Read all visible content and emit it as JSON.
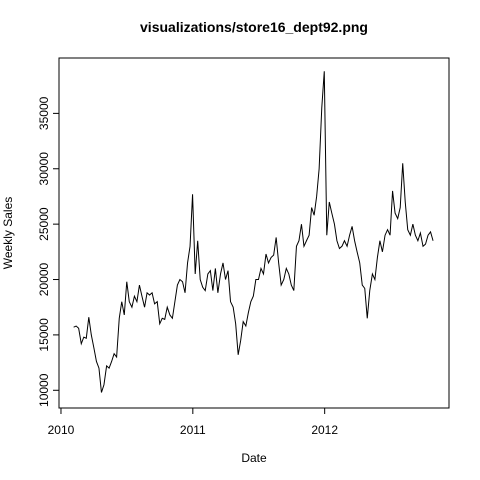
{
  "chart_data": {
    "type": "line",
    "title": "visualizations/store16_dept92.png",
    "xlabel": "Date",
    "ylabel": "Weekly Sales",
    "x": [
      2010.096,
      2010.115,
      2010.134,
      2010.154,
      2010.173,
      2010.192,
      2010.211,
      2010.23,
      2010.25,
      2010.269,
      2010.288,
      2010.307,
      2010.326,
      2010.346,
      2010.365,
      2010.384,
      2010.403,
      2010.422,
      2010.442,
      2010.461,
      2010.48,
      2010.499,
      2010.518,
      2010.538,
      2010.557,
      2010.576,
      2010.595,
      2010.614,
      2010.634,
      2010.653,
      2010.672,
      2010.691,
      2010.71,
      2010.73,
      2010.749,
      2010.768,
      2010.787,
      2010.806,
      2010.826,
      2010.845,
      2010.864,
      2010.883,
      2010.902,
      2010.922,
      2010.941,
      2010.96,
      2010.979,
      2010.998,
      2011.018,
      2011.037,
      2011.056,
      2011.075,
      2011.094,
      2011.114,
      2011.133,
      2011.152,
      2011.171,
      2011.19,
      2011.21,
      2011.229,
      2011.248,
      2011.267,
      2011.286,
      2011.306,
      2011.325,
      2011.344,
      2011.363,
      2011.382,
      2011.402,
      2011.421,
      2011.44,
      2011.459,
      2011.478,
      2011.498,
      2011.517,
      2011.536,
      2011.555,
      2011.574,
      2011.594,
      2011.613,
      2011.632,
      2011.651,
      2011.67,
      2011.69,
      2011.709,
      2011.728,
      2011.747,
      2011.766,
      2011.786,
      2011.805,
      2011.824,
      2011.843,
      2011.862,
      2011.882,
      2011.901,
      2011.92,
      2011.939,
      2011.958,
      2011.978,
      2011.997,
      2012.016,
      2012.035,
      2012.054,
      2012.074,
      2012.093,
      2012.112,
      2012.131,
      2012.15,
      2012.17,
      2012.189,
      2012.208,
      2012.227,
      2012.246,
      2012.266,
      2012.285,
      2012.304,
      2012.323,
      2012.342,
      2012.362,
      2012.381,
      2012.4,
      2012.419,
      2012.438,
      2012.458,
      2012.477,
      2012.496,
      2012.515,
      2012.534,
      2012.554,
      2012.573,
      2012.592,
      2012.611,
      2012.63,
      2012.65,
      2012.669,
      2012.688,
      2012.707,
      2012.726,
      2012.746,
      2012.765,
      2012.784,
      2012.803,
      2012.822
    ],
    "series": [
      {
        "name": "Weekly Sales",
        "color": "#000000",
        "values": [
          15700,
          15800,
          15600,
          14200,
          14800,
          14700,
          16600,
          15000,
          13800,
          12600,
          12000,
          9800,
          10500,
          12200,
          12000,
          12600,
          13300,
          13000,
          16500,
          18000,
          16800,
          19800,
          18000,
          17500,
          18500,
          18000,
          19500,
          18500,
          17500,
          18800,
          18600,
          18800,
          17800,
          18000,
          16000,
          16500,
          16400,
          17500,
          16800,
          16500,
          18000,
          19500,
          20000,
          19800,
          18800,
          21500,
          23000,
          27700,
          20500,
          23500,
          20000,
          19300,
          19000,
          20500,
          20800,
          19000,
          21000,
          18800,
          20500,
          21500,
          20000,
          20800,
          18000,
          17500,
          16000,
          13200,
          14500,
          16200,
          15800,
          17000,
          18000,
          18500,
          20000,
          20000,
          21000,
          20500,
          22300,
          21500,
          22000,
          22200,
          23800,
          21500,
          19500,
          20000,
          21000,
          20500,
          19500,
          19000,
          23000,
          23500,
          25000,
          23000,
          23500,
          24000,
          26500,
          25800,
          27500,
          30000,
          35500,
          38800,
          24000,
          27000,
          26000,
          25000,
          23500,
          22800,
          23000,
          23500,
          23000,
          24000,
          24800,
          23500,
          22500,
          21500,
          19500,
          19200,
          16500,
          19000,
          20500,
          20000,
          22000,
          23500,
          22500,
          24000,
          24500,
          24000,
          28000,
          26000,
          25500,
          26500,
          30500,
          27000,
          24500,
          24000,
          25000,
          24000,
          23500,
          24200,
          23000,
          23200,
          24000,
          24300,
          23500
        ]
      }
    ],
    "xlim": [
      2009.985,
      2012.943
    ],
    "xticks": [
      2010,
      2011,
      2012
    ],
    "ylim": [
      8400,
      40000
    ],
    "yticks": [
      10000,
      15000,
      20000,
      25000,
      30000,
      35000
    ]
  }
}
